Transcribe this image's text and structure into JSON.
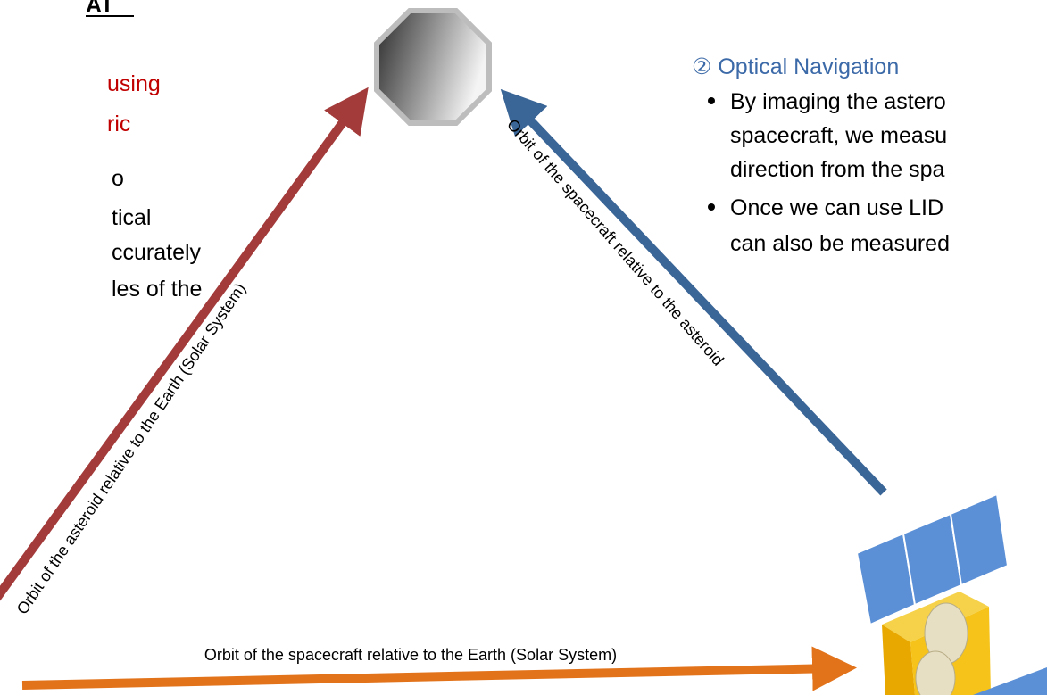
{
  "header": {
    "title": "AT"
  },
  "left_text": {
    "red_lines": [
      "using",
      "ric"
    ],
    "black_lines": [
      "o",
      "tical",
      "ccurately",
      "les of the"
    ]
  },
  "right_text": {
    "heading": "② Optical Navigation",
    "bullets": [
      [
        "By imaging the astero",
        "spacecraft, we measu",
        "direction from the spa"
      ],
      [
        "Once we can use LID",
        "can also be measured"
      ]
    ]
  },
  "arrows": [
    {
      "label": "Orbit of the asteroid relative to the Earth (Solar System)"
    },
    {
      "label": "Orbit of the spacecraft relative to the asteroid"
    },
    {
      "label": "Orbit of the spacecraft relative to the Earth (Solar System)"
    }
  ]
}
